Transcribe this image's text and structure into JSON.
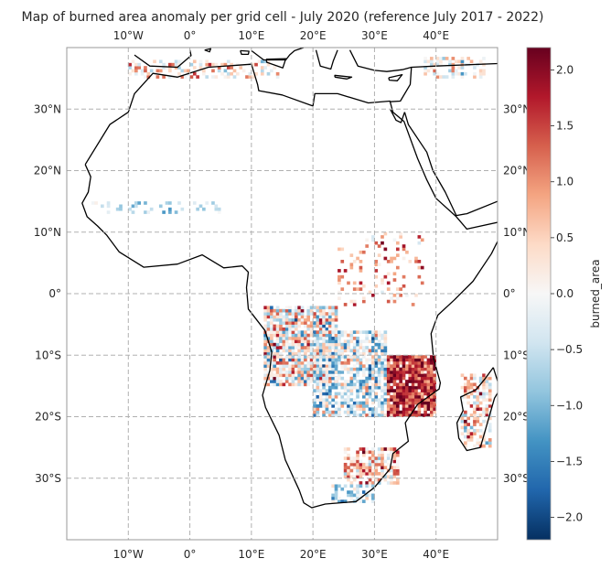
{
  "chart_data": {
    "type": "heatmap",
    "title": "Map of burned area anomaly per grid cell - July 2020 (reference July 2017 - 2022)",
    "projection": "PlateCarree",
    "lon_range": [
      -20,
      50
    ],
    "lat_range": [
      -40,
      40
    ],
    "x_ticks": [
      {
        "value": -10,
        "label": "10°W"
      },
      {
        "value": 0,
        "label": "0°"
      },
      {
        "value": 10,
        "label": "10°E"
      },
      {
        "value": 20,
        "label": "20°E"
      },
      {
        "value": 30,
        "label": "30°E"
      },
      {
        "value": 40,
        "label": "40°E"
      }
    ],
    "y_ticks": [
      {
        "value": 30,
        "label": "30°N"
      },
      {
        "value": 20,
        "label": "20°N"
      },
      {
        "value": 10,
        "label": "10°N"
      },
      {
        "value": 0,
        "label": "0°"
      },
      {
        "value": -10,
        "label": "10°S"
      },
      {
        "value": -20,
        "label": "20°S"
      },
      {
        "value": -30,
        "label": "30°S"
      }
    ],
    "grid": true,
    "colorbar": {
      "label": "burned_area",
      "colormap": "RdBu_r",
      "range": [
        -2.2,
        2.2
      ],
      "ticks": [
        {
          "value": 2.0,
          "label": "2.0"
        },
        {
          "value": 1.5,
          "label": "1.5"
        },
        {
          "value": 1.0,
          "label": "1.0"
        },
        {
          "value": 0.5,
          "label": "0.5"
        },
        {
          "value": 0.0,
          "label": "0.0"
        },
        {
          "value": -0.5,
          "label": "−0.5"
        },
        {
          "value": -1.0,
          "label": "−1.0"
        },
        {
          "value": -1.5,
          "label": "−1.5"
        },
        {
          "value": -2.0,
          "label": "−2.0"
        }
      ]
    },
    "anomaly_regions": [
      {
        "lon": [
          12,
          24
        ],
        "lat": [
          -15,
          -2
        ],
        "mean": 0.1,
        "spread": 2.2,
        "density": 0.85
      },
      {
        "lon": [
          20,
          32
        ],
        "lat": [
          -20,
          -6
        ],
        "mean": -0.3,
        "spread": 1.8,
        "density": 0.7
      },
      {
        "lon": [
          32,
          40
        ],
        "lat": [
          -20,
          -10
        ],
        "mean": 1.6,
        "spread": 1.2,
        "density": 0.9
      },
      {
        "lon": [
          25,
          34
        ],
        "lat": [
          -31,
          -25
        ],
        "mean": 0.6,
        "spread": 1.8,
        "density": 0.7
      },
      {
        "lon": [
          23,
          30
        ],
        "lat": [
          -34,
          -31
        ],
        "mean": -0.7,
        "spread": 1.4,
        "density": 0.6
      },
      {
        "lon": [
          44,
          49
        ],
        "lat": [
          -25,
          -13
        ],
        "mean": 0.4,
        "spread": 2.0,
        "density": 0.55
      },
      {
        "lon": [
          38,
          48
        ],
        "lat": [
          35,
          38.5
        ],
        "mean": 0.2,
        "spread": 1.6,
        "density": 0.45
      },
      {
        "lon": [
          -10,
          15
        ],
        "lat": [
          35,
          38
        ],
        "mean": 0.3,
        "spread": 1.6,
        "density": 0.35
      },
      {
        "lon": [
          24,
          38
        ],
        "lat": [
          -2,
          10
        ],
        "mean": 0.9,
        "spread": 1.6,
        "density": 0.15
      },
      {
        "lon": [
          -16,
          5
        ],
        "lat": [
          13,
          15
        ],
        "mean": -0.6,
        "spread": 0.8,
        "density": 0.2
      }
    ],
    "land_outlines": {
      "africa": [
        [
          -17,
          21
        ],
        [
          -13,
          27.5
        ],
        [
          -10,
          29.5
        ],
        [
          -9,
          32.5
        ],
        [
          -6,
          35.8
        ],
        [
          -2,
          35.2
        ],
        [
          3,
          36.8
        ],
        [
          10,
          37.3
        ],
        [
          11,
          34
        ],
        [
          11.2,
          33
        ],
        [
          15,
          32.3
        ],
        [
          20,
          30.5
        ],
        [
          20.3,
          32.5
        ],
        [
          24,
          32.5
        ],
        [
          29,
          31
        ],
        [
          32.5,
          31.3
        ],
        [
          33,
          29.5
        ],
        [
          34.8,
          28
        ],
        [
          37,
          22
        ],
        [
          38.5,
          18.5
        ],
        [
          40,
          15.5
        ],
        [
          43.3,
          12.5
        ],
        [
          45,
          10.5
        ],
        [
          51,
          11.8
        ],
        [
          51,
          10.5
        ],
        [
          49,
          6.5
        ],
        [
          46,
          2
        ],
        [
          43,
          -1
        ],
        [
          40.3,
          -3.5
        ],
        [
          39.2,
          -6.5
        ],
        [
          39.6,
          -10.5
        ],
        [
          40.7,
          -14.5
        ],
        [
          40.5,
          -15.5
        ],
        [
          37,
          -18
        ],
        [
          35,
          -21
        ],
        [
          35.5,
          -24
        ],
        [
          33,
          -26
        ],
        [
          32.5,
          -28.5
        ],
        [
          30,
          -31.5
        ],
        [
          27,
          -33.8
        ],
        [
          22,
          -34.2
        ],
        [
          19.8,
          -34.8
        ],
        [
          18.5,
          -34
        ],
        [
          17.8,
          -32
        ],
        [
          15.5,
          -27
        ],
        [
          14.5,
          -23
        ],
        [
          12.3,
          -18.5
        ],
        [
          11.8,
          -16.5
        ],
        [
          13,
          -12.5
        ],
        [
          13.3,
          -9.5
        ],
        [
          12.2,
          -6
        ],
        [
          9.5,
          -2.5
        ],
        [
          9.2,
          1
        ],
        [
          9.5,
          3.5
        ],
        [
          8.5,
          4.5
        ],
        [
          5.5,
          4.2
        ],
        [
          2,
          6.3
        ],
        [
          -2,
          4.8
        ],
        [
          -7.5,
          4.3
        ],
        [
          -11.5,
          6.8
        ],
        [
          -13.5,
          9.5
        ],
        [
          -15,
          11
        ],
        [
          -16.7,
          12.5
        ],
        [
          -17.5,
          14.7
        ],
        [
          -16.5,
          16.5
        ],
        [
          -16.1,
          19
        ],
        [
          -17,
          21
        ]
      ],
      "madagascar": [
        [
          49.3,
          -12
        ],
        [
          50.4,
          -15.5
        ],
        [
          49.5,
          -17
        ],
        [
          47.2,
          -25
        ],
        [
          45,
          -25.5
        ],
        [
          43.7,
          -23.5
        ],
        [
          43.4,
          -21
        ],
        [
          44.4,
          -19
        ],
        [
          44,
          -16.8
        ],
        [
          46.5,
          -15.6
        ],
        [
          48,
          -13.8
        ],
        [
          49.3,
          -12
        ]
      ],
      "sinai_arabia": [
        [
          32.5,
          31.2
        ],
        [
          34.2,
          31.3
        ],
        [
          35.8,
          34
        ],
        [
          36,
          36.8
        ],
        [
          40,
          37
        ],
        [
          50,
          37.4
        ]
      ],
      "arabia_red_sea": [
        [
          34.9,
          29.5
        ],
        [
          35.5,
          27.5
        ],
        [
          38.5,
          23
        ],
        [
          39.5,
          20
        ],
        [
          41.5,
          16.5
        ],
        [
          43.3,
          12.7
        ],
        [
          45,
          13
        ],
        [
          50,
          15
        ]
      ],
      "sinai_west": [
        [
          32.6,
          29.9
        ],
        [
          33.5,
          28.2
        ],
        [
          34.3,
          27.8
        ],
        [
          34.9,
          29.5
        ]
      ],
      "europe_iberia": [
        [
          -9,
          38.8
        ],
        [
          -6.5,
          37
        ],
        [
          -2,
          36.8
        ],
        [
          0.2,
          38.7
        ],
        [
          0,
          39.6
        ]
      ],
      "italy": [
        [
          10,
          39.5
        ],
        [
          12,
          38
        ],
        [
          15.6,
          38
        ],
        [
          16.2,
          38.8
        ],
        [
          17,
          39.5
        ],
        [
          18.5,
          40
        ]
      ],
      "sicily": [
        [
          12.4,
          38.1
        ],
        [
          15.6,
          38.2
        ],
        [
          15.1,
          36.7
        ],
        [
          12.5,
          37.6
        ],
        [
          12.4,
          38.1
        ]
      ],
      "sardinia": [
        [
          8.2,
          39.5
        ],
        [
          9.6,
          39.4
        ],
        [
          9.5,
          38.9
        ],
        [
          8.4,
          38.9
        ],
        [
          8.2,
          39.5
        ]
      ],
      "greece": [
        [
          20.5,
          39.6
        ],
        [
          21.2,
          37
        ],
        [
          22.9,
          36.5
        ],
        [
          23.3,
          37.8
        ],
        [
          24,
          39.6
        ]
      ],
      "turkey": [
        [
          26,
          39.6
        ],
        [
          27.3,
          37
        ],
        [
          30,
          36.3
        ],
        [
          32,
          36.1
        ],
        [
          34.5,
          36.4
        ],
        [
          36,
          36.8
        ]
      ],
      "crete": [
        [
          23.5,
          35.5
        ],
        [
          26.3,
          35.2
        ],
        [
          25.5,
          34.9
        ],
        [
          23.6,
          35.2
        ],
        [
          23.5,
          35.5
        ]
      ],
      "cyprus": [
        [
          32.3,
          35.1
        ],
        [
          34.5,
          35.6
        ],
        [
          33.7,
          34.6
        ],
        [
          32.4,
          34.7
        ],
        [
          32.3,
          35.1
        ]
      ],
      "mallorca": [
        [
          2.4,
          39.6
        ],
        [
          3.4,
          39.8
        ],
        [
          3.2,
          39.3
        ],
        [
          2.4,
          39.6
        ]
      ]
    }
  }
}
